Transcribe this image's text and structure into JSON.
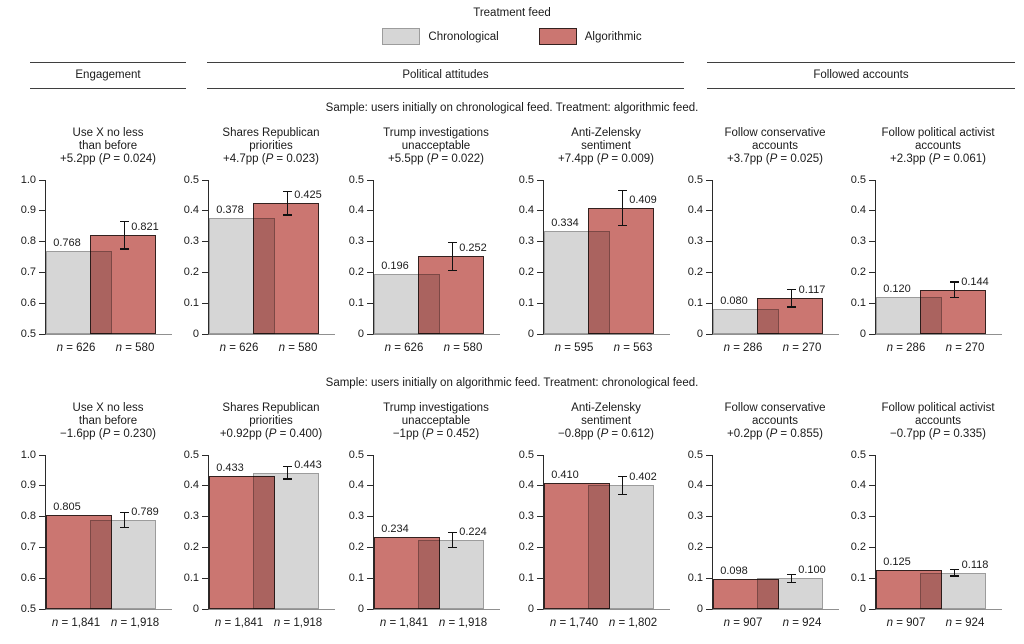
{
  "chart_data": {
    "type": "bar",
    "layout": "2 rows x 6 panels, paired overlapping bars with 95% CI on treatment bar, grid off",
    "legend": {
      "title": "Treatment feed",
      "series": [
        {
          "name": "Chronological",
          "fill": "#d6d6d6",
          "border": "#9c9c9c"
        },
        {
          "name": "Algorithmic",
          "fill": "#cb7671",
          "border": "#33211f"
        }
      ]
    },
    "column_groups": [
      "Engagement",
      "Political attitudes",
      "Followed accounts"
    ],
    "sections": [
      {
        "caption": "Sample: users initially on chronological feed. Treatment: algorithmic feed.",
        "panels": [
          {
            "title": [
              "Use X no less",
              "than before"
            ],
            "effect": "+5.2pp",
            "p": "0.024",
            "ylim": [
              0.5,
              1.0
            ],
            "yticks": [
              "1.0",
              "0.9",
              "0.8",
              "0.7",
              "0.6",
              "0.5"
            ],
            "bars": [
              {
                "series": "Chronological",
                "value": 0.768,
                "label": "0.768",
                "n": "626"
              },
              {
                "series": "Algorithmic",
                "value": 0.821,
                "label": "0.821",
                "n": "580",
                "ci": [
                  0.775,
                  0.868
                ]
              }
            ]
          },
          {
            "title": [
              "Shares Republican",
              "priorities"
            ],
            "effect": "+4.7pp",
            "p": "0.023",
            "ylim": [
              0,
              0.5
            ],
            "yticks": [
              "0.5",
              "0.4",
              "0.3",
              "0.2",
              "0.1",
              "0"
            ],
            "bars": [
              {
                "series": "Chronological",
                "value": 0.378,
                "label": "0.378",
                "n": "626"
              },
              {
                "series": "Algorithmic",
                "value": 0.425,
                "label": "0.425",
                "n": "580",
                "ci": [
                  0.385,
                  0.465
                ]
              }
            ]
          },
          {
            "title": [
              "Trump investigations",
              "unacceptable"
            ],
            "effect": "+5.5pp",
            "p": "0.022",
            "ylim": [
              0,
              0.5
            ],
            "yticks": [
              "0.5",
              "0.4",
              "0.3",
              "0.2",
              "0.1",
              "0"
            ],
            "bars": [
              {
                "series": "Chronological",
                "value": 0.196,
                "label": "0.196",
                "n": "626"
              },
              {
                "series": "Algorithmic",
                "value": 0.252,
                "label": "0.252",
                "n": "580",
                "ci": [
                  0.205,
                  0.3
                ]
              }
            ]
          },
          {
            "title": [
              "Anti-Zelensky",
              "sentiment"
            ],
            "effect": "+7.4pp",
            "p": "0.009",
            "ylim": [
              0,
              0.5
            ],
            "yticks": [
              "0.5",
              "0.4",
              "0.3",
              "0.2",
              "0.1",
              "0"
            ],
            "bars": [
              {
                "series": "Chronological",
                "value": 0.334,
                "label": "0.334",
                "n": "595"
              },
              {
                "series": "Algorithmic",
                "value": 0.409,
                "label": "0.409",
                "n": "563",
                "ci": [
                  0.352,
                  0.467
                ]
              }
            ]
          },
          {
            "title": [
              "Follow conservative",
              "accounts"
            ],
            "effect": "+3.7pp",
            "p": "0.025",
            "ylim": [
              0,
              0.5
            ],
            "yticks": [
              "0.5",
              "0.4",
              "0.3",
              "0.2",
              "0.1",
              "0"
            ],
            "bars": [
              {
                "series": "Chronological",
                "value": 0.08,
                "label": "0.080",
                "n": "286"
              },
              {
                "series": "Algorithmic",
                "value": 0.117,
                "label": "0.117",
                "n": "270",
                "ci": [
                  0.087,
                  0.147
                ]
              }
            ]
          },
          {
            "title": [
              "Follow political activist",
              "accounts"
            ],
            "effect": "+2.3pp",
            "p": "0.061",
            "ylim": [
              0,
              0.5
            ],
            "yticks": [
              "0.5",
              "0.4",
              "0.3",
              "0.2",
              "0.1",
              "0"
            ],
            "bars": [
              {
                "series": "Chronological",
                "value": 0.12,
                "label": "0.120",
                "n": "286"
              },
              {
                "series": "Algorithmic",
                "value": 0.144,
                "label": "0.144",
                "n": "270",
                "ci": [
                  0.117,
                  0.171
                ]
              }
            ]
          }
        ]
      },
      {
        "caption": "Sample: users initially on algorithmic feed. Treatment: chronological feed.",
        "panels": [
          {
            "title": [
              "Use X no less",
              "than before"
            ],
            "effect": "−1.6pp",
            "p": "0.230",
            "ylim": [
              0.5,
              1.0
            ],
            "yticks": [
              "1.0",
              "0.9",
              "0.8",
              "0.7",
              "0.6",
              "0.5"
            ],
            "bars": [
              {
                "series": "Algorithmic",
                "value": 0.805,
                "label": "0.805",
                "n": "1,841"
              },
              {
                "series": "Chronological",
                "value": 0.789,
                "label": "0.789",
                "n": "1,918",
                "ci": [
                  0.763,
                  0.815
                ]
              }
            ]
          },
          {
            "title": [
              "Shares Republican",
              "priorities"
            ],
            "effect": "+0.92pp",
            "p": "0.400",
            "ylim": [
              0,
              0.5
            ],
            "yticks": [
              "0.5",
              "0.4",
              "0.3",
              "0.2",
              "0.1",
              "0"
            ],
            "bars": [
              {
                "series": "Algorithmic",
                "value": 0.433,
                "label": "0.433",
                "n": "1,841"
              },
              {
                "series": "Chronological",
                "value": 0.443,
                "label": "0.443",
                "n": "1,918",
                "ci": [
                  0.421,
                  0.465
                ]
              }
            ]
          },
          {
            "title": [
              "Trump investigations",
              "unacceptable"
            ],
            "effect": "−1pp",
            "p": "0.452",
            "ylim": [
              0,
              0.5
            ],
            "yticks": [
              "0.5",
              "0.4",
              "0.3",
              "0.2",
              "0.1",
              "0"
            ],
            "bars": [
              {
                "series": "Algorithmic",
                "value": 0.234,
                "label": "0.234",
                "n": "1,841"
              },
              {
                "series": "Chronological",
                "value": 0.224,
                "label": "0.224",
                "n": "1,918",
                "ci": [
                  0.198,
                  0.25
                ]
              }
            ]
          },
          {
            "title": [
              "Anti-Zelensky",
              "sentiment"
            ],
            "effect": "−0.8pp",
            "p": "0.612",
            "ylim": [
              0,
              0.5
            ],
            "yticks": [
              "0.5",
              "0.4",
              "0.3",
              "0.2",
              "0.1",
              "0"
            ],
            "bars": [
              {
                "series": "Algorithmic",
                "value": 0.41,
                "label": "0.410",
                "n": "1,740"
              },
              {
                "series": "Chronological",
                "value": 0.402,
                "label": "0.402",
                "n": "1,802",
                "ci": [
                  0.371,
                  0.433
                ]
              }
            ]
          },
          {
            "title": [
              "Follow conservative",
              "accounts"
            ],
            "effect": "+0.2pp",
            "p": "0.855",
            "ylim": [
              0,
              0.5
            ],
            "yticks": [
              "0.5",
              "0.4",
              "0.3",
              "0.2",
              "0.1",
              "0"
            ],
            "bars": [
              {
                "series": "Algorithmic",
                "value": 0.098,
                "label": "0.098",
                "n": "907"
              },
              {
                "series": "Chronological",
                "value": 0.1,
                "label": "0.100",
                "n": "924",
                "ci": [
                  0.086,
                  0.113
                ]
              }
            ]
          },
          {
            "title": [
              "Follow political activist",
              "accounts"
            ],
            "effect": "−0.7pp",
            "p": "0.335",
            "ylim": [
              0,
              0.5
            ],
            "yticks": [
              "0.5",
              "0.4",
              "0.3",
              "0.2",
              "0.1",
              "0"
            ],
            "bars": [
              {
                "series": "Algorithmic",
                "value": 0.125,
                "label": "0.125",
                "n": "907"
              },
              {
                "series": "Chronological",
                "value": 0.118,
                "label": "0.118",
                "n": "924",
                "ci": [
                  0.106,
                  0.13
                ]
              }
            ]
          }
        ]
      }
    ]
  }
}
